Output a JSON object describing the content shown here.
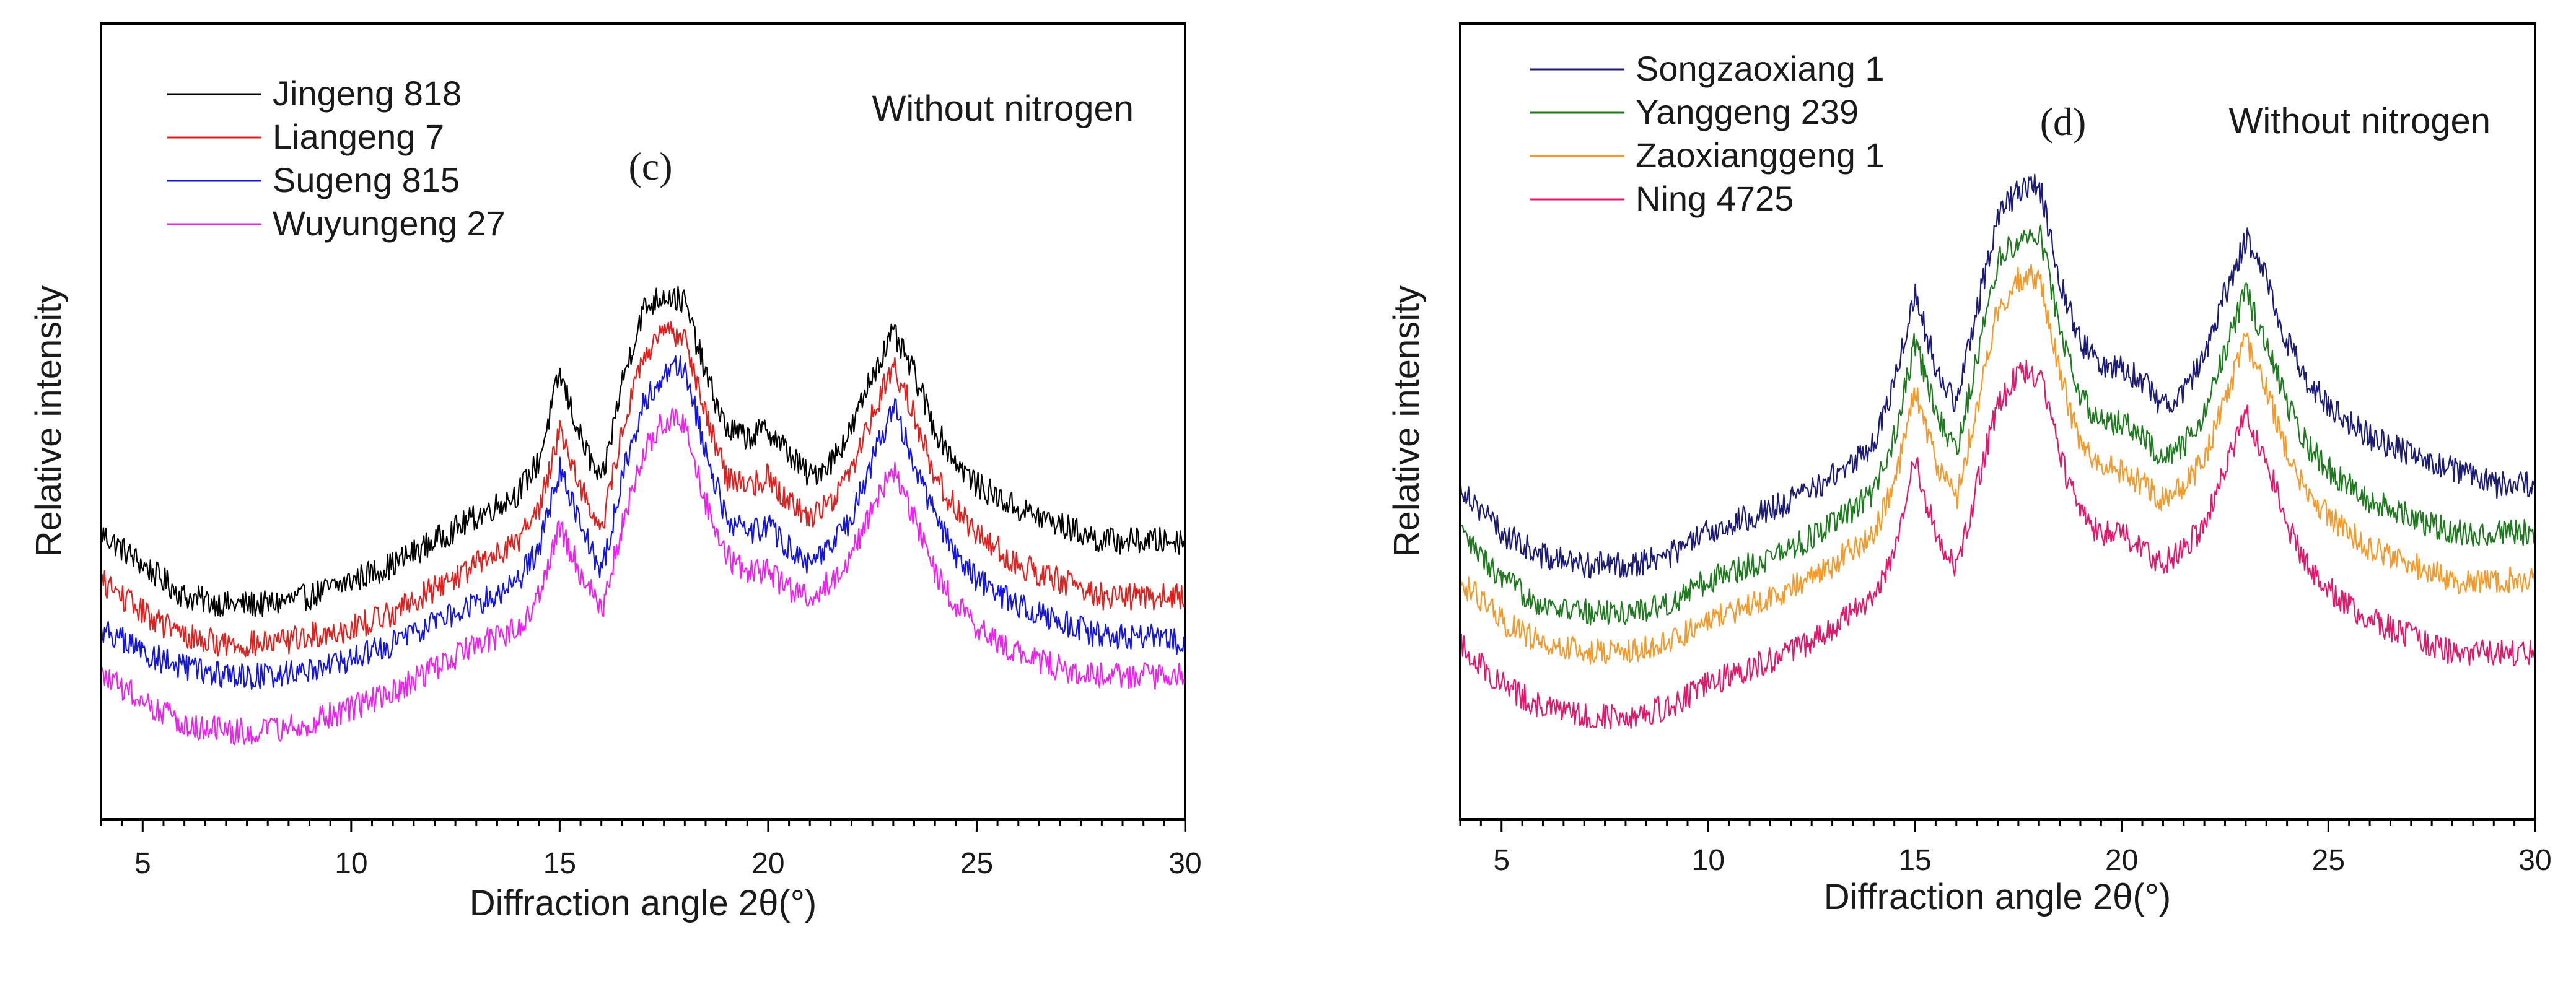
{
  "chart_data": [
    {
      "type": "line",
      "panel_label": "(c)",
      "annotation": "Without nitrogen",
      "xlabel": "Diffraction angle 2θ(°)",
      "ylabel": "Relative intensity",
      "xlim": [
        4,
        30
      ],
      "ylim": [
        0,
        100
      ],
      "xticks": [
        5,
        10,
        15,
        20,
        25,
        30
      ],
      "x": [
        4,
        5,
        6,
        7,
        8,
        9,
        10,
        11,
        12,
        13,
        14,
        14.5,
        15,
        15.5,
        16,
        16.5,
        17,
        17.5,
        18,
        18.5,
        19,
        19.5,
        20,
        20.5,
        21,
        21.5,
        22,
        22.5,
        23,
        23.5,
        24,
        24.5,
        25,
        26,
        27,
        28,
        29,
        30
      ],
      "series": [
        {
          "name": "Jingeng 818",
          "color": "#000000",
          "values": [
            36,
            32,
            28,
            27,
            27,
            28,
            30,
            32,
            35,
            38,
            41,
            45,
            56,
            48,
            42,
            55,
            64,
            66,
            65,
            56,
            49,
            48,
            49,
            46,
            43,
            45,
            49,
            56,
            61,
            56,
            49,
            45,
            42,
            39,
            37,
            35,
            35,
            35
          ]
        },
        {
          "name": "Liangeng 7",
          "color": "#e0211f",
          "values": [
            30,
            26,
            23,
            22,
            22,
            23,
            24,
            26,
            29,
            32,
            35,
            39,
            49,
            42,
            36,
            49,
            58,
            61,
            61,
            51,
            43,
            42,
            43,
            40,
            38,
            40,
            44,
            51,
            57,
            51,
            43,
            39,
            36,
            32,
            30,
            28,
            28,
            28
          ]
        },
        {
          "name": "Sugeng 815",
          "color": "#1515e0",
          "values": [
            24,
            21,
            19,
            18,
            18,
            19,
            20,
            22,
            25,
            27,
            30,
            34,
            44,
            37,
            31,
            43,
            52,
            56,
            57,
            46,
            38,
            36,
            37,
            34,
            32,
            34,
            38,
            45,
            52,
            45,
            38,
            33,
            30,
            27,
            25,
            23,
            23,
            22
          ]
        },
        {
          "name": "Wuyungeng 27",
          "color": "#ee22ee",
          "values": [
            18,
            15,
            12,
            11,
            11,
            12,
            14,
            16,
            19,
            22,
            24,
            28,
            37,
            31,
            26,
            37,
            46,
            50,
            50,
            40,
            33,
            31,
            31,
            29,
            28,
            30,
            33,
            39,
            44,
            38,
            31,
            27,
            24,
            21,
            19,
            18,
            18,
            18
          ]
        }
      ]
    },
    {
      "type": "line",
      "panel_label": "(d)",
      "annotation": "Without nitrogen",
      "xlabel": "Diffraction angle 2θ(°)",
      "ylabel": "Relative intensity",
      "xlim": [
        4,
        30
      ],
      "ylim": [
        0,
        100
      ],
      "xticks": [
        5,
        10,
        15,
        20,
        25,
        30
      ],
      "x": [
        4,
        5,
        6,
        7,
        8,
        9,
        10,
        11,
        12,
        13,
        14,
        14.5,
        15,
        15.5,
        16,
        16.5,
        17,
        17.5,
        18,
        18.5,
        19,
        19.5,
        20,
        20.5,
        21,
        21.5,
        22,
        22.5,
        23,
        23.5,
        24,
        24.5,
        25,
        26,
        27,
        28,
        29,
        30
      ],
      "series": [
        {
          "name": "Songzaoxiang 1",
          "color": "#1c1c78",
          "values": [
            42,
            36,
            33,
            32,
            32,
            33,
            36,
            38,
            40,
            43,
            47,
            55,
            66,
            57,
            52,
            64,
            76,
            79,
            80,
            68,
            60,
            57,
            57,
            55,
            52,
            54,
            58,
            66,
            73,
            68,
            60,
            55,
            52,
            48,
            46,
            44,
            42,
            42
          ]
        },
        {
          "name": "Yanggeng 239",
          "color": "#1f7a1f",
          "values": [
            36,
            30,
            27,
            26,
            26,
            27,
            30,
            32,
            34,
            37,
            41,
            48,
            60,
            51,
            46,
            58,
            70,
            73,
            74,
            62,
            53,
            50,
            50,
            48,
            45,
            47,
            51,
            59,
            66,
            60,
            52,
            47,
            44,
            40,
            38,
            36,
            36,
            36
          ]
        },
        {
          "name": "Zaoxianggeng 1",
          "color": "#f39a2a",
          "values": [
            30,
            25,
            22,
            21,
            21,
            22,
            25,
            27,
            29,
            32,
            36,
            42,
            54,
            45,
            40,
            52,
            64,
            68,
            68,
            56,
            47,
            44,
            44,
            42,
            40,
            42,
            45,
            53,
            60,
            54,
            46,
            41,
            38,
            34,
            32,
            30,
            30,
            30
          ]
        },
        {
          "name": "Ning 4725",
          "color": "#e0196e",
          "values": [
            22,
            17,
            14,
            13,
            13,
            14,
            17,
            19,
            21,
            24,
            28,
            34,
            45,
            36,
            31,
            42,
            52,
            56,
            56,
            46,
            38,
            36,
            36,
            34,
            32,
            34,
            37,
            44,
            51,
            45,
            37,
            32,
            29,
            25,
            23,
            21,
            21,
            21
          ]
        }
      ]
    }
  ]
}
